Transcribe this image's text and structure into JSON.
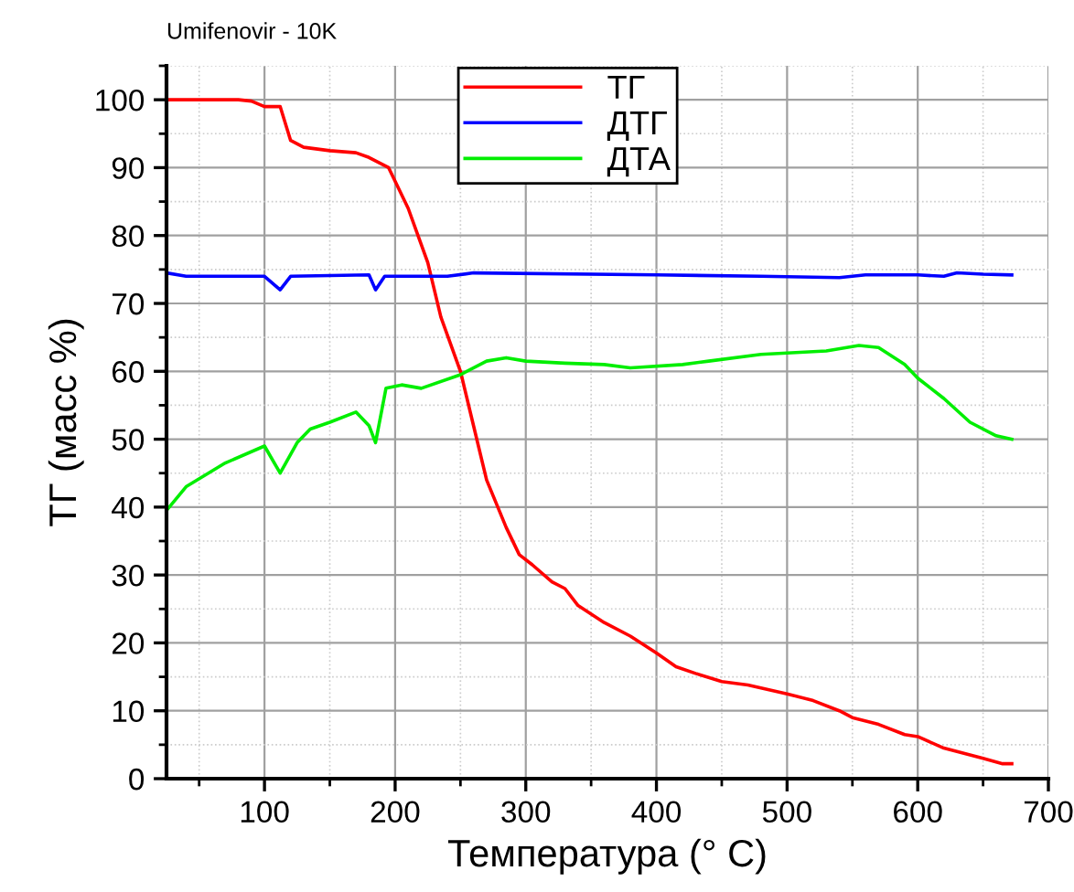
{
  "chart_data": {
    "type": "line",
    "title": "Umifenovir - 10K",
    "xlabel": "Температура (° C)",
    "ylabel": "ТГ (масс %)",
    "xlim": [
      25,
      700
    ],
    "xticks": [
      100,
      200,
      300,
      400,
      500,
      600,
      700
    ],
    "ylim": [
      0,
      105
    ],
    "yticks": [
      0,
      10,
      20,
      30,
      40,
      50,
      60,
      70,
      80,
      90,
      100
    ],
    "grid": true,
    "legend": "top",
    "line_style": "solid",
    "marker": "none",
    "series": [
      {
        "name": "ТГ",
        "color": "#ff0000",
        "x": [
          25,
          80,
          90,
          100,
          112,
          120,
          130,
          150,
          170,
          180,
          195,
          210,
          225,
          235,
          250,
          260,
          270,
          285,
          295,
          305,
          320,
          330,
          340,
          360,
          380,
          400,
          415,
          430,
          450,
          470,
          500,
          520,
          540,
          550,
          570,
          590,
          600,
          620,
          650,
          665,
          672
        ],
        "values": [
          100,
          100,
          99.8,
          99,
          99,
          94,
          93,
          92.5,
          92.2,
          91.5,
          90,
          84,
          76,
          68,
          60,
          52,
          44,
          37,
          33,
          31.5,
          29,
          28,
          25.5,
          23,
          21,
          18.5,
          16.5,
          15.5,
          14.3,
          13.8,
          12.5,
          11.5,
          10,
          9,
          8,
          6.5,
          6.2,
          4.5,
          3,
          2.2,
          2.2
        ]
      },
      {
        "name": "ДТГ",
        "color": "#0000ff",
        "x": [
          25,
          40,
          100,
          112,
          120,
          180,
          185,
          192,
          240,
          260,
          400,
          480,
          540,
          560,
          580,
          600,
          620,
          630,
          650,
          672
        ],
        "values": [
          74.5,
          74,
          74,
          72,
          74,
          74.2,
          72,
          74,
          74,
          74.5,
          74.2,
          74,
          73.8,
          74.2,
          74.2,
          74.2,
          74,
          74.5,
          74.3,
          74.2
        ]
      },
      {
        "name": "ДТА",
        "color": "#00ee00",
        "x": [
          25,
          40,
          70,
          100,
          112,
          125,
          135,
          150,
          170,
          180,
          185,
          193,
          205,
          220,
          250,
          270,
          285,
          300,
          330,
          360,
          380,
          420,
          440,
          480,
          530,
          555,
          570,
          590,
          600,
          620,
          640,
          660,
          672
        ],
        "values": [
          39.5,
          43,
          46.5,
          49,
          45,
          49.5,
          51.5,
          52.5,
          54,
          52,
          49.5,
          57.5,
          58,
          57.5,
          59.5,
          61.5,
          62,
          61.5,
          61.2,
          61,
          60.5,
          61,
          61.5,
          62.5,
          63,
          63.8,
          63.5,
          61,
          59,
          56,
          52.5,
          50.5,
          50
        ]
      }
    ]
  }
}
